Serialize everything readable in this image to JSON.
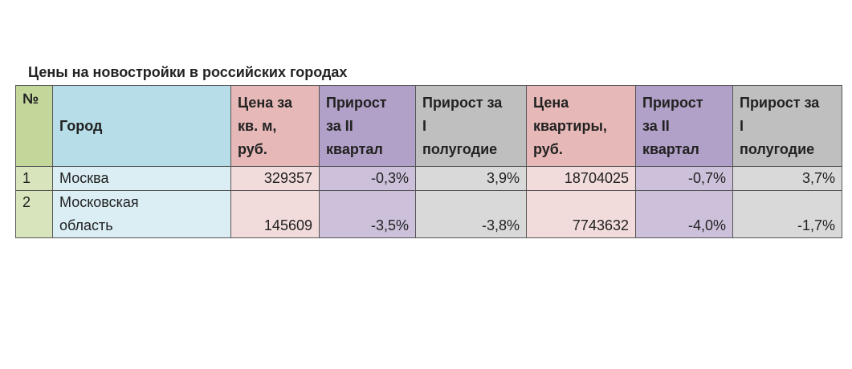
{
  "title": "Цены на новостройки в российских городах",
  "table": {
    "header": [
      [
        "№"
      ],
      [
        "Город"
      ],
      [
        "Цена за",
        "кв. м,",
        "руб."
      ],
      [
        "Прирост",
        "за II",
        "квартал"
      ],
      [
        "Прирост за",
        "I",
        "полугодие"
      ],
      [
        "Цена",
        "квартиры,",
        "руб."
      ],
      [
        "Прирост",
        "за II",
        "квартал"
      ],
      [
        "Прирост за",
        "I",
        "полугодие"
      ]
    ],
    "rows": [
      {
        "num": "1",
        "city": [
          "Москва"
        ],
        "values": [
          "329357",
          "-0,3%",
          "3,9%",
          "18704025",
          "-0,7%",
          "3,7%"
        ]
      },
      {
        "num": "2",
        "city": [
          "Московская",
          "область"
        ],
        "values": [
          "145609",
          "-3,5%",
          "-3,8%",
          "7743632",
          "-4,0%",
          "-1,7%"
        ]
      }
    ]
  }
}
